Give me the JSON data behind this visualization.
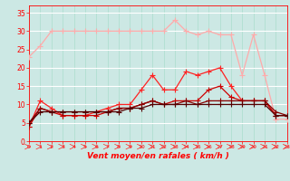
{
  "x": [
    0,
    1,
    2,
    3,
    4,
    5,
    6,
    7,
    8,
    9,
    10,
    11,
    12,
    13,
    14,
    15,
    16,
    17,
    18,
    19,
    20,
    21,
    22,
    23
  ],
  "line1": [
    23,
    26,
    30,
    30,
    30,
    30,
    30,
    30,
    30,
    30,
    30,
    30,
    30,
    33,
    30,
    29,
    30,
    29,
    29,
    18,
    29,
    18,
    6,
    6
  ],
  "line2": [
    4,
    11,
    9,
    7,
    7,
    7,
    8,
    9,
    10,
    10,
    14,
    18,
    14,
    14,
    19,
    18,
    19,
    20,
    15,
    11,
    11,
    11,
    7,
    7
  ],
  "line3": [
    4,
    9,
    8,
    7,
    7,
    7,
    7,
    8,
    9,
    9,
    10,
    11,
    10,
    11,
    11,
    11,
    14,
    15,
    12,
    11,
    11,
    11,
    7,
    7
  ],
  "line4": [
    5,
    9,
    8,
    8,
    8,
    8,
    8,
    8,
    9,
    9,
    10,
    11,
    10,
    10,
    11,
    10,
    11,
    11,
    11,
    11,
    11,
    11,
    8,
    7
  ],
  "line5": [
    5,
    8,
    8,
    8,
    8,
    8,
    8,
    8,
    8,
    9,
    9,
    10,
    10,
    10,
    10,
    10,
    10,
    10,
    10,
    10,
    10,
    10,
    7,
    7
  ],
  "bg_color": "#cce8e4",
  "grid_color": "#aadddd",
  "line1_color": "#ffaaaa",
  "line2_color": "#ff2222",
  "line3_color": "#cc0000",
  "line4_color": "#880000",
  "line5_color": "#550000",
  "xlabel": "Vent moyen/en rafales ( km/h )",
  "xlim": [
    0,
    23
  ],
  "ylim": [
    0,
    37
  ],
  "yticks": [
    0,
    5,
    10,
    15,
    20,
    25,
    30,
    35
  ],
  "xticks": [
    0,
    1,
    2,
    3,
    4,
    5,
    6,
    7,
    8,
    9,
    10,
    11,
    12,
    13,
    14,
    15,
    16,
    17,
    18,
    19,
    20,
    21,
    22,
    23
  ]
}
